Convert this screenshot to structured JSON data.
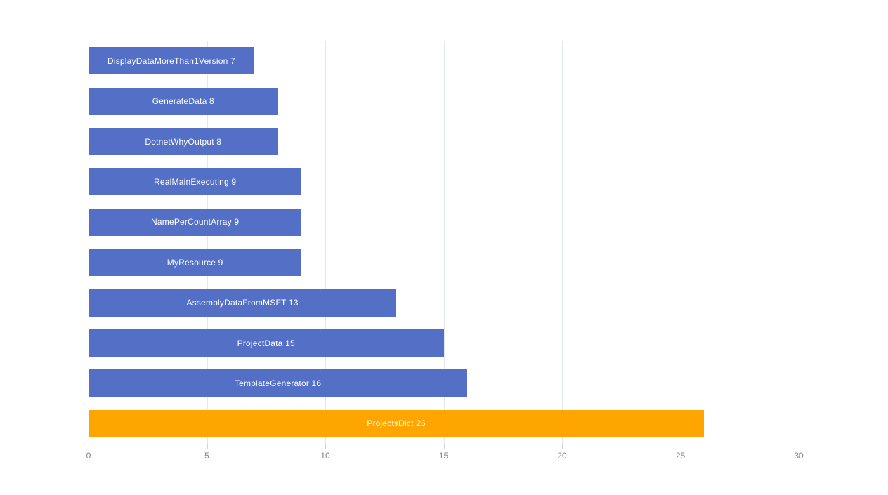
{
  "chart_data": {
    "type": "bar",
    "orientation": "horizontal",
    "categories": [
      "DisplayDataMoreThan1Version",
      "GenerateData",
      "DotnetWhyOutput",
      "RealMainExecuting",
      "NamePerCountArray",
      "MyResource",
      "AssemblyDataFromMSFT",
      "ProjectData",
      "TemplateGenerator",
      "ProjectsDict"
    ],
    "values": [
      7,
      8,
      8,
      9,
      9,
      9,
      13,
      15,
      16,
      26
    ],
    "bar_colors": [
      "#5470c6",
      "#5470c6",
      "#5470c6",
      "#5470c6",
      "#5470c6",
      "#5470c6",
      "#5470c6",
      "#5470c6",
      "#5470c6",
      "#ffa500"
    ],
    "label_format": "{name} {value}",
    "label_position": "inside-center",
    "xlim": [
      0,
      30
    ],
    "x_ticks": [
      0,
      5,
      10,
      15,
      20,
      25,
      30
    ],
    "grid": true,
    "legend": false
  },
  "colors": {
    "background": "#ffffff",
    "bar_default": "#5470c6",
    "bar_highlight": "#ffa500",
    "grid_line": "#e3e8ef",
    "axis_tick": "#d0d4db",
    "tick_label": "#7e828b",
    "bar_label": "#ffffff"
  }
}
